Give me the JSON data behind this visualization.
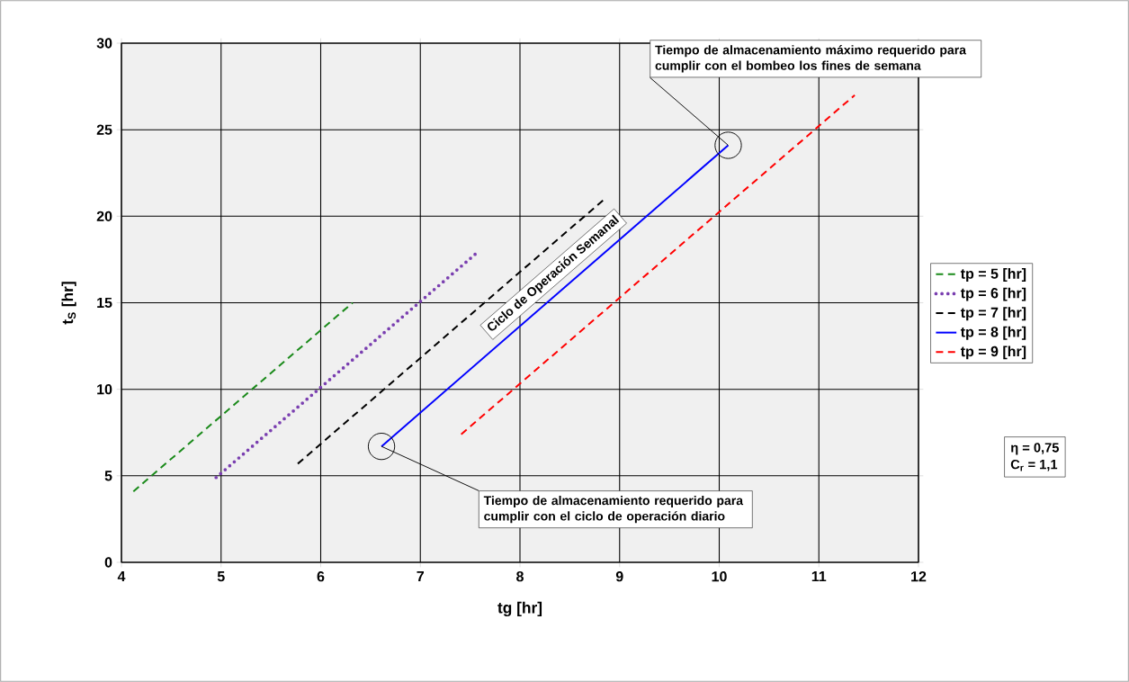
{
  "chart_data": {
    "type": "line",
    "xlabel": "tg [hr]",
    "ylabel": "t$_{S}$ [hr]",
    "xlim": [
      4,
      12
    ],
    "ylim": [
      0,
      30
    ],
    "xticks": [
      4,
      5,
      6,
      7,
      8,
      9,
      10,
      11,
      12
    ],
    "yticks": [
      0,
      5,
      10,
      15,
      20,
      25,
      30
    ],
    "grid": true,
    "legend": "right",
    "marker": "none",
    "series": [
      {
        "name": "tp = 5 [hr]",
        "color": "#1a8a1a",
        "line_style": "dashed",
        "x": [
          4.12,
          6.32
        ],
        "values": [
          4.1,
          15.0
        ]
      },
      {
        "name": "tp = 6 [hr]",
        "color": "#7a3fb0",
        "line_style": "dotted",
        "x": [
          4.95,
          7.59
        ],
        "values": [
          4.9,
          18.0
        ]
      },
      {
        "name": "tp = 7 [hr]",
        "color": "#000000",
        "line_style": "dashed",
        "x": [
          5.77,
          8.85
        ],
        "values": [
          5.7,
          21.0
        ]
      },
      {
        "name": "tp = 8 [hr]",
        "color": "#0000ff",
        "line_style": "solid",
        "x": [
          6.61,
          10.09
        ],
        "values": [
          6.7,
          24.1
        ]
      },
      {
        "name": "tp = 9 [hr]",
        "color": "#ff0000",
        "line_style": "dashed",
        "x": [
          7.41,
          11.36
        ],
        "values": [
          7.4,
          27.0
        ]
      }
    ],
    "annotations": [
      {
        "text": "Tiempo de almacenamiento máximo requerido para cumplir con el bombeo los fines de semana",
        "x": 10.09,
        "y": 24.1
      },
      {
        "text": "Tiempo de almacenamiento requerido para cumplir con el ciclo de operación diario",
        "x": 6.61,
        "y": 6.7
      },
      "Ciclo de Operación Semanal",
      "η = 0,75",
      "C$_{r}$ = 1,1"
    ]
  }
}
